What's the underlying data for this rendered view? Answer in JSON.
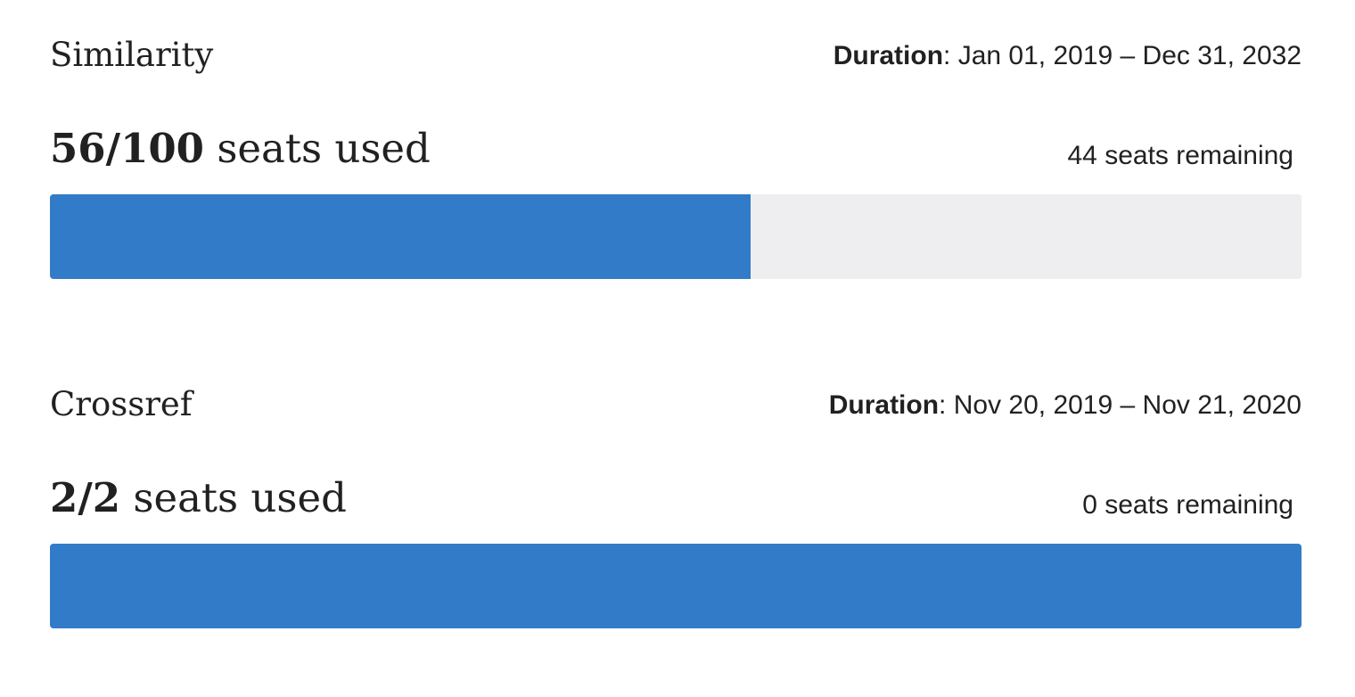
{
  "products": [
    {
      "name": "Similarity",
      "duration_label": "Duration",
      "duration": ": Jan 01, 2019 – Dec 31, 2032",
      "used": 56,
      "separator": "/",
      "total": 100,
      "used_label": "seats used",
      "remaining": 44,
      "remaining_label": "seats remaining"
    },
    {
      "name": "Crossref",
      "duration_label": "Duration",
      "duration": ": Nov 20, 2019 – Nov 21, 2020",
      "used": 2,
      "separator": "/",
      "total": 2,
      "used_label": "seats used",
      "remaining": 0,
      "remaining_label": "seats remaining"
    }
  ]
}
